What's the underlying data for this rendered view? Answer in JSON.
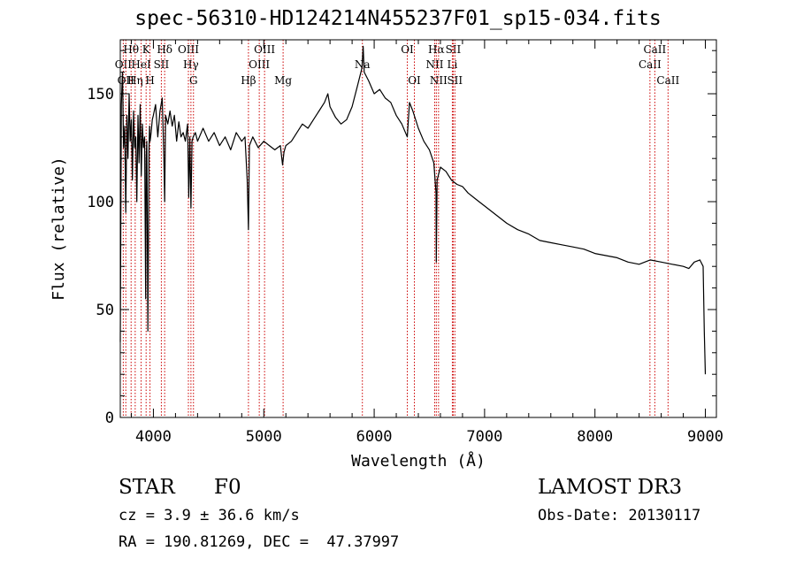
{
  "header": {
    "title": "spec-56310-HD124214N455237F01_sp15-034.fits"
  },
  "footer": {
    "object_type": "STAR",
    "object_class": "F0",
    "survey": "LAMOST DR3",
    "cz": "cz = 3.9 ± 36.6 km/s",
    "obs_date": "Obs-Date: 20130117",
    "radec": "RA = 190.81269, DEC =  47.37997"
  },
  "chart_data": {
    "type": "line",
    "title": "spec-56310-HD124214N455237F01_sp15-034.fits",
    "xlabel": "Wavelength (Å)",
    "ylabel": "Flux (relative)",
    "xlim": [
      3700,
      9100
    ],
    "ylim": [
      0,
      175
    ],
    "xticks": [
      4000,
      5000,
      6000,
      7000,
      8000,
      9000
    ],
    "yticks": [
      0,
      50,
      100,
      150
    ],
    "grid": false,
    "series": [
      {
        "name": "flux",
        "color": "#000000",
        "x": [
          3700,
          3710,
          3720,
          3730,
          3740,
          3750,
          3760,
          3770,
          3780,
          3790,
          3800,
          3810,
          3820,
          3830,
          3840,
          3850,
          3860,
          3870,
          3880,
          3890,
          3900,
          3910,
          3920,
          3930,
          3935,
          3940,
          3950,
          3960,
          3965,
          3970,
          3980,
          3990,
          4000,
          4020,
          4040,
          4060,
          4080,
          4095,
          4102,
          4110,
          4130,
          4150,
          4170,
          4190,
          4210,
          4230,
          4250,
          4270,
          4290,
          4310,
          4320,
          4330,
          4340,
          4350,
          4360,
          4380,
          4400,
          4450,
          4500,
          4550,
          4600,
          4650,
          4700,
          4750,
          4800,
          4830,
          4850,
          4861,
          4870,
          4900,
          4950,
          5000,
          5050,
          5100,
          5150,
          5170,
          5183,
          5200,
          5250,
          5300,
          5350,
          5400,
          5450,
          5500,
          5550,
          5580,
          5600,
          5650,
          5700,
          5750,
          5800,
          5850,
          5890,
          5900,
          5910,
          5930,
          5950,
          6000,
          6050,
          6100,
          6150,
          6200,
          6250,
          6300,
          6320,
          6350,
          6400,
          6450,
          6500,
          6540,
          6560,
          6563,
          6570,
          6600,
          6650,
          6700,
          6750,
          6800,
          6850,
          6900,
          6950,
          7000,
          7100,
          7200,
          7300,
          7400,
          7500,
          7600,
          7700,
          7800,
          7900,
          8000,
          8100,
          8200,
          8300,
          8400,
          8500,
          8600,
          8700,
          8800,
          8850,
          8900,
          8950,
          8980,
          8990,
          9000
        ],
        "values": [
          35,
          145,
          160,
          125,
          135,
          95,
          140,
          120,
          150,
          128,
          138,
          110,
          142,
          125,
          130,
          100,
          140,
          118,
          145,
          112,
          136,
          125,
          130,
          55,
          120,
          128,
          40,
          125,
          135,
          128,
          132,
          138,
          140,
          145,
          130,
          142,
          148,
          120,
          100,
          140,
          136,
          142,
          135,
          140,
          128,
          137,
          130,
          132,
          128,
          136,
          102,
          130,
          97,
          128,
          130,
          132,
          128,
          134,
          128,
          132,
          126,
          130,
          124,
          132,
          128,
          130,
          110,
          87,
          126,
          130,
          125,
          128,
          126,
          124,
          126,
          117,
          123,
          126,
          128,
          132,
          136,
          134,
          138,
          142,
          146,
          150,
          144,
          139,
          136,
          138,
          144,
          154,
          162,
          172,
          160,
          158,
          156,
          150,
          152,
          148,
          146,
          140,
          136,
          130,
          146,
          142,
          134,
          128,
          124,
          118,
          104,
          72,
          110,
          116,
          114,
          110,
          108,
          107,
          104,
          102,
          100,
          98,
          94,
          90,
          87,
          85,
          82,
          81,
          80,
          79,
          78,
          76,
          75,
          74,
          72,
          71,
          73,
          72,
          71,
          70,
          69,
          72,
          73,
          70,
          40,
          20
        ]
      }
    ],
    "lines": [
      {
        "wl": 3727,
        "label": "OII",
        "row": 2
      },
      {
        "wl": 3750,
        "label": "OII",
        "row": 3
      },
      {
        "wl": 3798,
        "label": "Hθ",
        "row": 1
      },
      {
        "wl": 3835,
        "label": "Hη",
        "row": 3
      },
      {
        "wl": 3889,
        "label": "HeI",
        "row": 2
      },
      {
        "wl": 3934,
        "label": "K",
        "row": 1
      },
      {
        "wl": 3969,
        "label": "H",
        "row": 3
      },
      {
        "wl": 4072,
        "label": "SII",
        "row": 2
      },
      {
        "wl": 4102,
        "label": "Hδ",
        "row": 1
      },
      {
        "wl": 4317,
        "label": "OIII",
        "row": 1
      },
      {
        "wl": 4340,
        "label": "Hγ",
        "row": 2
      },
      {
        "wl": 4363,
        "label": "G",
        "row": 3
      },
      {
        "wl": 4861,
        "label": "Hβ",
        "row": 3
      },
      {
        "wl": 4959,
        "label": "OIII",
        "row": 2
      },
      {
        "wl": 5007,
        "label": "OIII",
        "row": 1
      },
      {
        "wl": 5175,
        "label": "Mg",
        "row": 3
      },
      {
        "wl": 5893,
        "label": "Na",
        "row": 2
      },
      {
        "wl": 6300,
        "label": "OI",
        "row": 1
      },
      {
        "wl": 6364,
        "label": "OI",
        "row": 3
      },
      {
        "wl": 6548,
        "label": "NII",
        "row": 2
      },
      {
        "wl": 6563,
        "label": "Hα",
        "row": 1
      },
      {
        "wl": 6583,
        "label": "NII",
        "row": 3
      },
      {
        "wl": 6708,
        "label": "Li",
        "row": 2
      },
      {
        "wl": 6716,
        "label": "SII",
        "row": 1
      },
      {
        "wl": 6731,
        "label": "SII",
        "row": 3
      },
      {
        "wl": 8498,
        "label": "CaII",
        "row": 2
      },
      {
        "wl": 8542,
        "label": "CaII",
        "row": 1
      },
      {
        "wl": 8662,
        "label": "CaII",
        "row": 3
      }
    ],
    "line_color": "#cc0000"
  }
}
